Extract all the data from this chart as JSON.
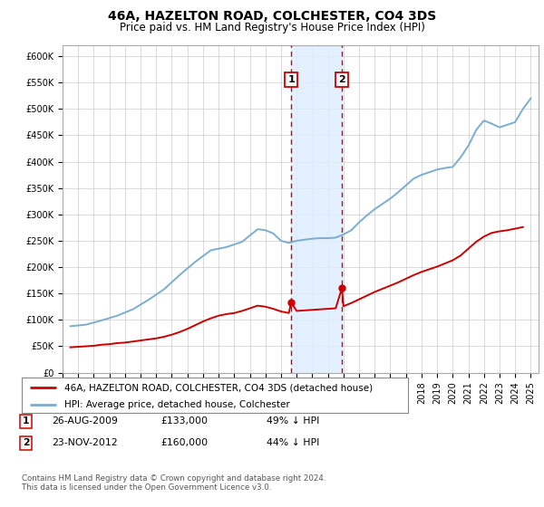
{
  "title": "46A, HAZELTON ROAD, COLCHESTER, CO4 3DS",
  "subtitle": "Price paid vs. HM Land Registry's House Price Index (HPI)",
  "ylim": [
    0,
    620000
  ],
  "yticks": [
    0,
    50000,
    100000,
    150000,
    200000,
    250000,
    300000,
    350000,
    400000,
    450000,
    500000,
    550000,
    600000
  ],
  "ytick_labels": [
    "£0",
    "£50K",
    "£100K",
    "£150K",
    "£200K",
    "£250K",
    "£300K",
    "£350K",
    "£400K",
    "£450K",
    "£500K",
    "£550K",
    "£600K"
  ],
  "xlim_start": 1995.0,
  "xlim_end": 2025.5,
  "transaction1_date": 2009.647,
  "transaction2_date": 2012.897,
  "legend_property_label": "46A, HAZELTON ROAD, COLCHESTER, CO4 3DS (detached house)",
  "legend_hpi_label": "HPI: Average price, detached house, Colchester",
  "property_line_color": "#cc0000",
  "hpi_line_color": "#7aadcf",
  "vline_color": "#cc0000",
  "shade_color": "#ddeeff",
  "footer_text": "Contains HM Land Registry data © Crown copyright and database right 2024.\nThis data is licensed under the Open Government Licence v3.0.",
  "background_color": "#ffffff",
  "grid_color": "#cccccc",
  "hpi_years": [
    1995.5,
    1996.5,
    1997.5,
    1998.5,
    1999.5,
    2000.5,
    2001.5,
    2002.5,
    2003.5,
    2004.5,
    2005.5,
    2006.5,
    2007.5,
    2008.0,
    2008.5,
    2009.0,
    2009.5,
    2010.0,
    2010.5,
    2011.0,
    2011.5,
    2012.0,
    2012.5,
    2013.0,
    2013.5,
    2014.0,
    2014.5,
    2015.0,
    2015.5,
    2016.0,
    2016.5,
    2017.0,
    2017.5,
    2018.0,
    2018.5,
    2019.0,
    2019.5,
    2020.0,
    2020.5,
    2021.0,
    2021.5,
    2022.0,
    2022.5,
    2023.0,
    2023.5,
    2024.0,
    2024.5,
    2025.0
  ],
  "hpi_values": [
    88000,
    91000,
    99000,
    108000,
    120000,
    138000,
    158000,
    185000,
    210000,
    232000,
    238000,
    248000,
    272000,
    270000,
    264000,
    250000,
    246000,
    250000,
    252000,
    254000,
    255000,
    255000,
    256000,
    262000,
    270000,
    285000,
    298000,
    310000,
    320000,
    330000,
    342000,
    355000,
    368000,
    375000,
    380000,
    385000,
    388000,
    390000,
    408000,
    430000,
    460000,
    478000,
    472000,
    465000,
    470000,
    475000,
    500000,
    520000
  ],
  "property_years": [
    1995.5,
    1996.0,
    1996.5,
    1997.0,
    1997.5,
    1998.0,
    1998.5,
    1999.0,
    1999.5,
    2000.0,
    2000.5,
    2001.0,
    2001.5,
    2002.0,
    2002.5,
    2003.0,
    2003.5,
    2004.0,
    2004.5,
    2005.0,
    2005.5,
    2006.0,
    2006.5,
    2007.0,
    2007.5,
    2008.0,
    2008.5,
    2009.0,
    2009.5,
    2009.647,
    2010.0,
    2010.5,
    2011.0,
    2011.5,
    2012.0,
    2012.5,
    2012.897,
    2013.0,
    2013.5,
    2014.0,
    2014.5,
    2015.0,
    2015.5,
    2016.0,
    2016.5,
    2017.0,
    2017.5,
    2018.0,
    2018.5,
    2019.0,
    2019.5,
    2020.0,
    2020.5,
    2021.0,
    2021.5,
    2022.0,
    2022.5,
    2023.0,
    2023.5,
    2024.0,
    2024.5
  ],
  "property_values": [
    48000,
    49000,
    50000,
    51000,
    53000,
    54000,
    56000,
    57000,
    59000,
    61000,
    63000,
    65000,
    68000,
    72000,
    77000,
    83000,
    90000,
    97000,
    103000,
    108000,
    111000,
    113000,
    117000,
    122000,
    127000,
    125000,
    121000,
    116000,
    113000,
    133000,
    117000,
    118000,
    119000,
    120000,
    121000,
    122000,
    160000,
    126000,
    132000,
    139000,
    146000,
    153000,
    159000,
    165000,
    171000,
    178000,
    185000,
    191000,
    196000,
    201000,
    207000,
    213000,
    222000,
    235000,
    248000,
    258000,
    265000,
    268000,
    270000,
    273000,
    276000
  ],
  "title_fontsize": 10,
  "subtitle_fontsize": 8.5,
  "tick_fontsize": 7,
  "legend_fontsize": 7.5
}
